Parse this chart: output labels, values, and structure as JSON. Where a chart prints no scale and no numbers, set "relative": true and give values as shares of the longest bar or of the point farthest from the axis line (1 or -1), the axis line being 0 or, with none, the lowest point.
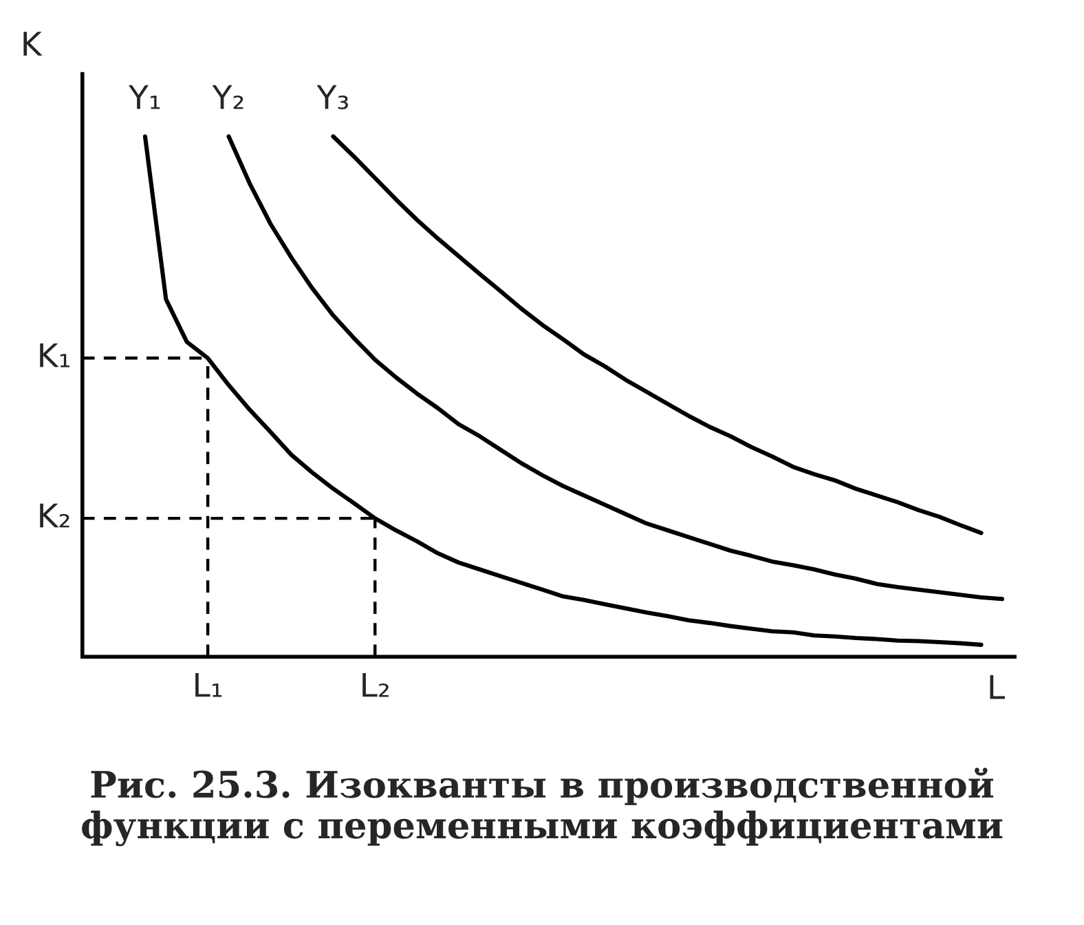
{
  "chart_data": {
    "type": "line",
    "relative": true,
    "xlabel": "L",
    "ylabel": "K",
    "grid": false,
    "legend": false,
    "marker": "none",
    "line_style": "solid",
    "categories": [
      null,
      null,
      null,
      null,
      null,
      null,
      "L₁",
      null,
      null,
      null,
      null,
      null,
      null,
      null,
      "L₂",
      null,
      null,
      null,
      null,
      null,
      null,
      null,
      null,
      null,
      null,
      null,
      null,
      null,
      null,
      null,
      null,
      null,
      null,
      null,
      null,
      null,
      null,
      null,
      null,
      null,
      null,
      null,
      null,
      null,
      null
    ],
    "series": [
      {
        "name": "Y₁",
        "color": "#000000",
        "values": [
          null,
          null,
          null,
          1.0,
          0.687,
          0.605,
          0.574,
          0.522,
          0.475,
          0.432,
          0.388,
          0.354,
          0.323,
          0.295,
          0.266,
          0.243,
          0.222,
          0.199,
          0.181,
          0.168,
          0.155,
          0.142,
          0.129,
          0.116,
          0.109,
          0.101,
          0.093,
          0.085,
          0.078,
          0.07,
          0.065,
          0.059,
          0.054,
          0.049,
          0.047,
          0.041,
          0.039,
          0.036,
          0.034,
          0.031,
          0.03,
          0.028,
          0.026,
          0.023,
          null
        ]
      },
      {
        "name": "Y₂",
        "color": "#000000",
        "values": [
          null,
          null,
          null,
          null,
          null,
          null,
          null,
          1.0,
          0.91,
          0.832,
          0.767,
          0.708,
          0.656,
          0.612,
          0.571,
          0.537,
          0.506,
          0.478,
          0.447,
          0.424,
          0.398,
          0.372,
          0.349,
          0.328,
          0.31,
          0.292,
          0.274,
          0.256,
          0.243,
          0.23,
          0.217,
          0.204,
          0.194,
          0.183,
          0.176,
          0.168,
          0.158,
          0.15,
          0.14,
          0.134,
          0.129,
          0.124,
          0.119,
          0.114,
          0.111
        ]
      },
      {
        "name": "Y₃",
        "color": "#000000",
        "values": [
          null,
          null,
          null,
          null,
          null,
          null,
          null,
          null,
          null,
          null,
          null,
          null,
          1.0,
          0.961,
          0.92,
          0.879,
          0.84,
          0.804,
          0.77,
          0.736,
          0.703,
          0.669,
          0.638,
          0.61,
          0.581,
          0.558,
          0.532,
          0.509,
          0.486,
          0.463,
          0.442,
          0.424,
          0.403,
          0.385,
          0.365,
          0.351,
          0.339,
          0.323,
          0.31,
          0.297,
          0.282,
          0.269,
          0.253,
          0.238,
          null
        ]
      }
    ],
    "ref_lines": [
      {
        "axis": "y",
        "value": 0.574,
        "label": "K₁",
        "line_style": "dashed"
      },
      {
        "axis": "y",
        "value": 0.266,
        "label": "K₂",
        "line_style": "dashed"
      },
      {
        "axis": "x",
        "value": "L₁",
        "line_style": "dashed"
      },
      {
        "axis": "x",
        "value": "L₂",
        "line_style": "dashed"
      }
    ],
    "annotations": [
      "Рис. 25.3. Изокванты в производственной функции с переменными коэффициентами"
    ]
  }
}
